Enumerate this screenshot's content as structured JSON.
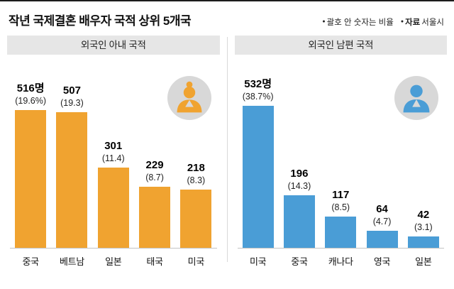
{
  "header": {
    "title": "작년 국제결혼 배우자 국적 상위 5개국",
    "bullet_icon": "●",
    "note1": "괄호 안 숫자는 비율",
    "note2_label": "자료",
    "note2_value": "서울시"
  },
  "colors": {
    "wife_bar": "#F0A330",
    "husband_bar": "#4A9DD6",
    "icon_circle": "#d8d8d8"
  },
  "chart_data": [
    {
      "type": "bar",
      "title": "외국인 아내 국적",
      "categories": [
        "중국",
        "베트남",
        "일본",
        "태국",
        "미국"
      ],
      "values": [
        516,
        507,
        301,
        229,
        218
      ],
      "value_labels": [
        "516명",
        "507",
        "301",
        "229",
        "218"
      ],
      "pct_labels": [
        "(19.6%)",
        "(19.3)",
        "(11.4)",
        "(8.7)",
        "(8.3)"
      ],
      "percentages": [
        19.6,
        19.3,
        11.4,
        8.7,
        8.3
      ],
      "bar_color": "#F0A330",
      "icon": "woman-icon",
      "ylim": [
        0,
        560
      ],
      "grid": false,
      "legend": "none"
    },
    {
      "type": "bar",
      "title": "외국인 남편 국적",
      "categories": [
        "미국",
        "중국",
        "캐나다",
        "영국",
        "일본"
      ],
      "values": [
        532,
        196,
        117,
        64,
        42
      ],
      "value_labels": [
        "532명",
        "196",
        "117",
        "64",
        "42"
      ],
      "pct_labels": [
        "(38.7%)",
        "(14.3)",
        "(8.5)",
        "(4.7)",
        "(3.1)"
      ],
      "percentages": [
        38.7,
        14.3,
        8.5,
        4.7,
        3.1
      ],
      "bar_color": "#4A9DD6",
      "icon": "man-icon",
      "ylim": [
        0,
        560
      ],
      "grid": false,
      "legend": "none"
    }
  ]
}
